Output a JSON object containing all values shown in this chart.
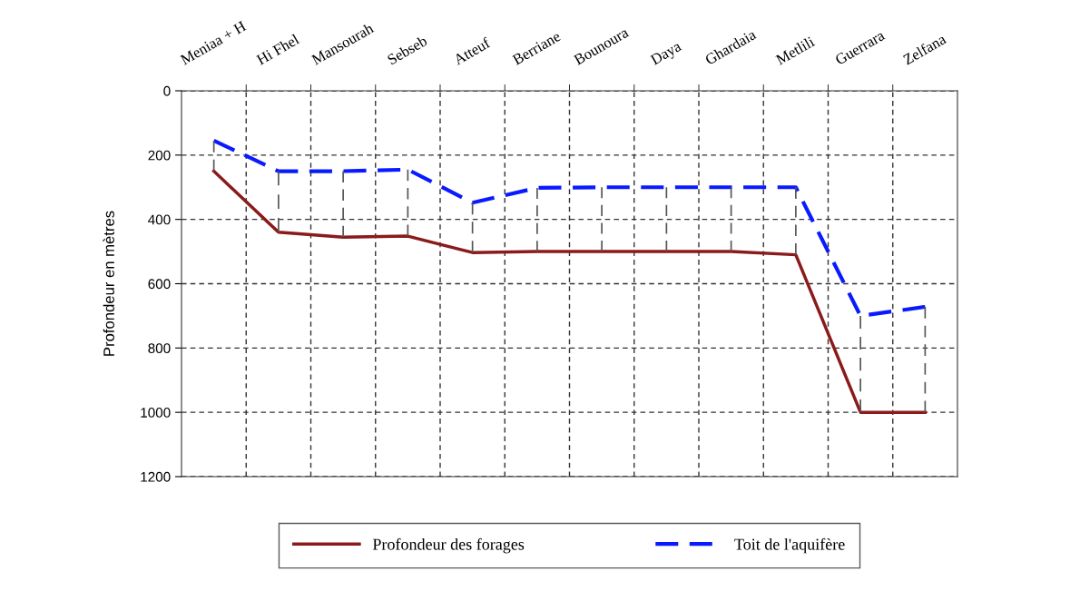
{
  "chart_data": {
    "type": "line",
    "categories": [
      "Meniaa + H",
      "Hi Fhel",
      "Mansourah",
      "Sebseb",
      "Atteuf",
      "Berriane",
      "Bounoura",
      "Daya",
      "Ghardaia",
      "Metlili",
      "Guerrara",
      "Zelfana"
    ],
    "series": [
      {
        "name": "Profondeur des forages",
        "color": "#8b1a1a",
        "line_style": "solid",
        "values": [
          250,
          440,
          455,
          452,
          503,
          500,
          500,
          500,
          500,
          510,
          1000,
          1000
        ]
      },
      {
        "name": "Toit de l'aquifère",
        "color": "#0a1aff",
        "line_style": "dashed",
        "values": [
          155,
          250,
          250,
          245,
          348,
          302,
          300,
          300,
          300,
          300,
          700,
          672
        ],
        "errors": [
          [
            155,
            250
          ],
          [
            250,
            440
          ],
          [
            250,
            455
          ],
          [
            245,
            452
          ],
          [
            348,
            503
          ],
          [
            302,
            500
          ],
          [
            300,
            500
          ],
          [
            300,
            500
          ],
          [
            300,
            500
          ],
          [
            300,
            510
          ],
          [
            700,
            1000
          ],
          [
            672,
            1000
          ]
        ]
      }
    ],
    "ylabel": "Profondeur en mètres",
    "ylim": [
      1200,
      0
    ],
    "yticks": [
      0,
      200,
      400,
      600,
      800,
      1000,
      1200
    ],
    "grid": true,
    "legend": "bottom",
    "marker": "none"
  }
}
